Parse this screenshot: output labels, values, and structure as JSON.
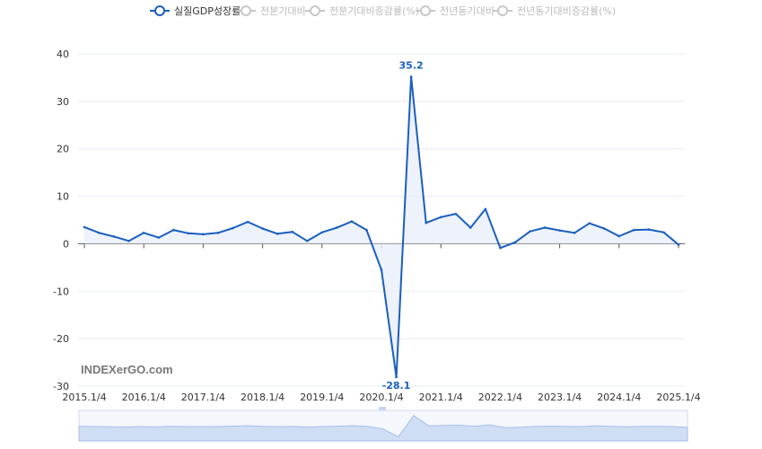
{
  "legend": [
    {
      "label": "실질GDP성장률",
      "active": true
    },
    {
      "label": "전분기대비",
      "active": false
    },
    {
      "label": "전분기대비증감률(%)",
      "active": false
    },
    {
      "label": "전년동기대비",
      "active": false
    },
    {
      "label": "전년동기대비증감률(%)",
      "active": false
    }
  ],
  "watermark": "INDEXerGO.com",
  "colors": {
    "line": "#1a5fbf",
    "inactive": "#c8c8c8",
    "grid": "#e6ebf5",
    "zoom": "#c6d6f2"
  },
  "chart_data": {
    "type": "area",
    "ylim": [
      -30,
      40
    ],
    "yticks": [
      "40",
      "30",
      "20",
      "10",
      "0",
      "-10",
      "-20",
      "-30"
    ],
    "ytick_values": [
      40,
      30,
      20,
      10,
      0,
      -10,
      -20,
      -30
    ],
    "xticks": [
      "2015.1/4",
      "2016.1/4",
      "2017.1/4",
      "2018.1/4",
      "2019.1/4",
      "2020.1/4",
      "2021.1/4",
      "2022.1/4",
      "2023.1/4",
      "2024.1/4",
      "2025.1/4"
    ],
    "xtick_indices": [
      0,
      4,
      8,
      12,
      16,
      20,
      24,
      28,
      32,
      36,
      40
    ],
    "series": [
      {
        "name": "실질GDP성장률",
        "values": [
          3.5,
          2.3,
          1.5,
          0.6,
          2.3,
          1.3,
          2.9,
          2.2,
          2.0,
          2.3,
          3.3,
          4.6,
          3.2,
          2.1,
          2.5,
          0.6,
          2.4,
          3.4,
          4.7,
          2.9,
          -5.5,
          -28.1,
          35.2,
          4.4,
          5.6,
          6.3,
          3.4,
          7.3,
          -0.9,
          0.3,
          2.6,
          3.4,
          2.8,
          2.3,
          4.3,
          3.2,
          1.6,
          2.9,
          3.0,
          2.4,
          -0.2
        ]
      }
    ],
    "annotations": [
      {
        "label": "35.2",
        "index": 22,
        "value": 35.2
      },
      {
        "label": "-28.1",
        "index": 21,
        "value": -28.1
      }
    ]
  }
}
